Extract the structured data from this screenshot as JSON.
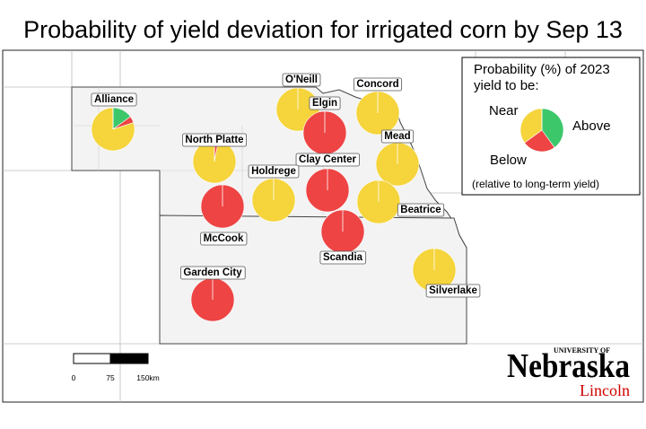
{
  "title": "Probability of yield deviation for irrigated corn by Sep 13",
  "colors": {
    "above": "#3cc76a",
    "below": "#ee4444",
    "near": "#f5d43c",
    "map_fill": "#f3f3f3",
    "state_line": "#444444",
    "county_line": "#bbbbbb",
    "brand_red": "#d00000"
  },
  "legend": {
    "title_line1": "Probability (%) of 2023",
    "title_line2": "yield to be:",
    "near_label": "Near",
    "above_label": "Above",
    "below_label": "Below",
    "note": "(relative to long-term yield)",
    "sample_pie": {
      "above": 40,
      "below": 25,
      "near": 35
    }
  },
  "scale": {
    "ticks": [
      "0",
      "75",
      "150km"
    ]
  },
  "logo": {
    "university": "UNIVERSITY OF",
    "name": "Nebraska",
    "campus": "Lincoln"
  },
  "sites": [
    {
      "name": "Alliance",
      "above": 15,
      "below": 5,
      "near": 80
    },
    {
      "name": "O'Neill",
      "above": 0,
      "below": 0,
      "near": 100
    },
    {
      "name": "Concord",
      "above": 0,
      "below": 0,
      "near": 100
    },
    {
      "name": "Elgin",
      "above": 0,
      "below": 100,
      "near": 0
    },
    {
      "name": "North Platte",
      "above": 0,
      "below": 3,
      "near": 97
    },
    {
      "name": "Mead",
      "above": 0,
      "below": 0,
      "near": 100
    },
    {
      "name": "Clay Center",
      "above": 0,
      "below": 100,
      "near": 0
    },
    {
      "name": "Holdrege",
      "above": 0,
      "below": 0,
      "near": 100
    },
    {
      "name": "McCook",
      "above": 0,
      "below": 100,
      "near": 0
    },
    {
      "name": "Beatrice",
      "above": 0,
      "below": 0,
      "near": 100
    },
    {
      "name": "Scandia",
      "above": 0,
      "below": 100,
      "near": 0
    },
    {
      "name": "Garden City",
      "above": 0,
      "below": 100,
      "near": 0
    },
    {
      "name": "Silverlake",
      "above": 0,
      "below": 0,
      "near": 100
    }
  ]
}
